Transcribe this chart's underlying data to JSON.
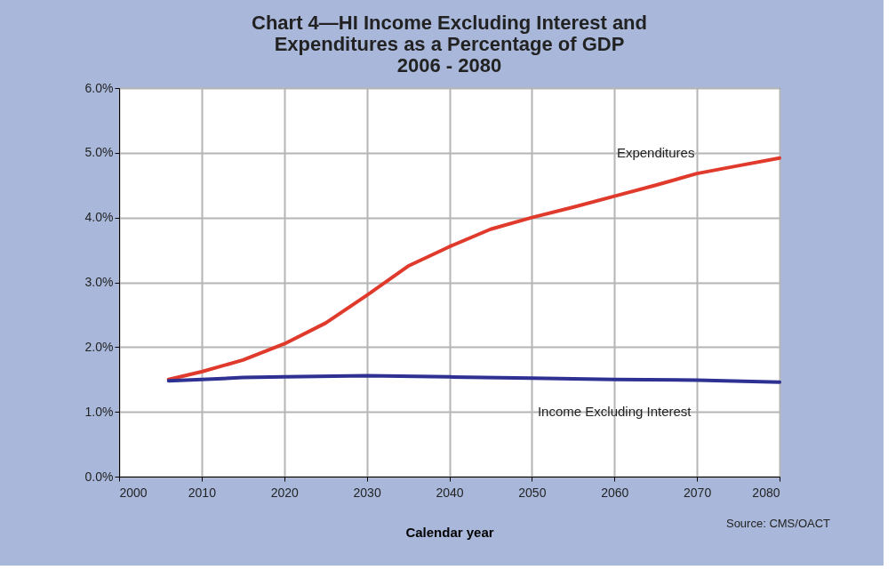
{
  "chart_data": {
    "type": "line",
    "title": [
      "Chart 4—HI Income Excluding Interest and",
      "Expenditures as a Percentage of GDP",
      "2006 - 2080"
    ],
    "xlabel": "Calendar year",
    "x": [
      2006,
      2010,
      2015,
      2020,
      2025,
      2030,
      2035,
      2040,
      2045,
      2050,
      2055,
      2060,
      2065,
      2070,
      2075,
      2080
    ],
    "series": [
      {
        "name": "Expenditures",
        "color": "#e03a2c",
        "values": [
          1.5,
          1.62,
          1.8,
          2.05,
          2.37,
          2.8,
          3.25,
          3.55,
          3.82,
          4.0,
          4.16,
          4.33,
          4.5,
          4.68,
          4.8,
          4.92
        ]
      },
      {
        "name": "Income Excluding Interest",
        "color": "#2e3192",
        "x": [
          2006,
          2010,
          2015,
          2020,
          2030,
          2040,
          2050,
          2060,
          2070,
          2080
        ],
        "values": [
          1.48,
          1.5,
          1.53,
          1.54,
          1.56,
          1.54,
          1.52,
          1.5,
          1.49,
          1.46
        ]
      }
    ],
    "annotations": [
      "Source: CMS/OACT"
    ],
    "xlim": [
      2000,
      2080
    ],
    "xticks": [
      2000,
      2010,
      2020,
      2030,
      2040,
      2050,
      2060,
      2070,
      2080
    ],
    "ylim": [
      0,
      6
    ],
    "yticks": [
      {
        "value": 0,
        "label": "0.0%"
      },
      {
        "value": 1,
        "label": "1.0%"
      },
      {
        "value": 2,
        "label": "2.0%"
      },
      {
        "value": 3,
        "label": "3.0%"
      },
      {
        "value": 4,
        "label": "4.0%"
      },
      {
        "value": 5,
        "label": "5.0%"
      },
      {
        "value": 6,
        "label": "6.0%"
      }
    ],
    "grid": true,
    "legend": false,
    "marker": "none",
    "line_style": "solid"
  }
}
